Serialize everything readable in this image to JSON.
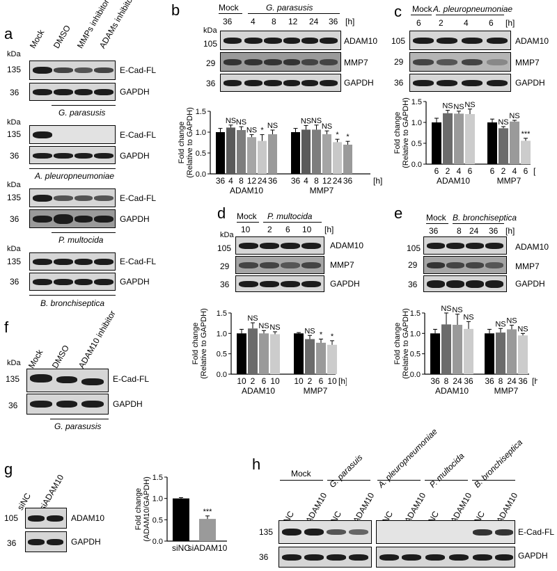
{
  "panels": {
    "a": {
      "letter": "a",
      "lanes": [
        "Mock",
        "DMSO",
        "MMPs inhibitor",
        "ADAMs inhibitor"
      ],
      "kda": "kDa",
      "blocks": [
        {
          "strain": "G. parasusis",
          "rows": [
            {
              "mw": "135",
              "label": "E-Cad-FL"
            },
            {
              "mw": "36",
              "label": "GAPDH"
            }
          ]
        },
        {
          "strain": "A. pleuropneumoniae",
          "rows": [
            {
              "mw": "135",
              "label": "E-Cad-FL"
            },
            {
              "mw": "36",
              "label": "GAPDH"
            }
          ]
        },
        {
          "strain": "P. multocida",
          "rows": [
            {
              "mw": "135",
              "label": "E-Cad-FL"
            },
            {
              "mw": "36",
              "label": "GAPDH"
            }
          ]
        },
        {
          "strain": "B. bronchiseptica",
          "rows": [
            {
              "mw": "135",
              "label": "E-Cad-FL"
            },
            {
              "mw": "36",
              "label": "GAPDH"
            }
          ]
        }
      ]
    },
    "b": {
      "letter": "b",
      "mock": "Mock",
      "strain": "G. parasusis",
      "unit": "[h]",
      "lanes": [
        "36",
        "4",
        "8",
        "12",
        "24",
        "36"
      ],
      "rows": [
        {
          "mw": "105",
          "label": "ADAM10"
        },
        {
          "mw": "29",
          "label": "MMP7"
        },
        {
          "mw": "36",
          "label": "GAPDH"
        }
      ]
    },
    "c": {
      "letter": "c",
      "mock": "Mock",
      "strain": "A. pleuropneumoniae",
      "unit": "[h]",
      "lanes": [
        "6",
        "2",
        "4",
        "6"
      ],
      "rows": [
        {
          "mw": "105",
          "label": "ADAM10"
        },
        {
          "mw": "29",
          "label": "MMP7"
        },
        {
          "mw": "36",
          "label": "GAPDH"
        }
      ]
    },
    "d": {
      "letter": "d",
      "mock": "Mock",
      "strain": "P. multocida",
      "unit": "[h]",
      "lanes": [
        "10",
        "2",
        "6",
        "10"
      ],
      "rows": [
        {
          "mw": "105",
          "label": "ADAM10"
        },
        {
          "mw": "29",
          "label": "MMP7"
        },
        {
          "mw": "36",
          "label": "GAPDH"
        }
      ]
    },
    "e": {
      "letter": "e",
      "mock": "Mock",
      "strain": "B. bronchiseptica",
      "unit": "[h]",
      "lanes": [
        "36",
        "8",
        "24",
        "36"
      ],
      "rows": [
        {
          "mw": "105",
          "label": "ADAM10"
        },
        {
          "mw": "29",
          "label": "MMP7"
        },
        {
          "mw": "36",
          "label": "GAPDH"
        }
      ]
    },
    "f": {
      "letter": "f",
      "lanes": [
        "Mock",
        "DMSO",
        "ADAM10 inhibitor"
      ],
      "strain": "G. parasusis",
      "rows": [
        {
          "mw": "135",
          "label": "E-Cad-FL"
        },
        {
          "mw": "36",
          "label": "GAPDH"
        }
      ]
    },
    "g": {
      "letter": "g",
      "lanes": [
        "siNC",
        "siADAM10"
      ],
      "rows": [
        {
          "mw": "105",
          "label": "ADAM10"
        },
        {
          "mw": "36",
          "label": "GAPDH"
        }
      ]
    },
    "h": {
      "letter": "h",
      "groups": [
        "Mock",
        "G. parasuis",
        "A. pleuropneumoniae",
        "P. multocida",
        "B. bronchiseptica"
      ],
      "lanes": [
        "siNC",
        "siADAM10",
        "siNC",
        "siADAM10",
        "siNC",
        "siADAM10",
        "siNC",
        "siADAM10",
        "siNC",
        "siADAM10"
      ],
      "rows": [
        {
          "mw": "135",
          "label": "E-Cad-FL"
        },
        {
          "mw": "36",
          "label": "GAPDH"
        }
      ]
    }
  },
  "chart_data": [
    {
      "panel": "b",
      "type": "bar",
      "ylabel": "Fold change\n(Relative to GAPDH)",
      "ylim": [
        0,
        1.5
      ],
      "yticks": [
        "0.0",
        "0.5",
        "1.0",
        "1.5"
      ],
      "groups": [
        "ADAM10",
        "MMP7"
      ],
      "unit": "[h]",
      "categories": [
        "36",
        "4",
        "8",
        "12",
        "24",
        "36"
      ],
      "values": [
        [
          1.0,
          1.11,
          1.05,
          0.88,
          0.79,
          0.95
        ],
        [
          1.0,
          1.06,
          1.06,
          0.95,
          0.76,
          0.7
        ]
      ],
      "errors": [
        [
          0.09,
          0.06,
          0.08,
          0.06,
          0.15,
          0.1
        ],
        [
          0.09,
          0.1,
          0.11,
          0.08,
          0.07,
          0.08
        ]
      ],
      "annotations": [
        [
          "",
          "NS",
          "NS",
          "NS",
          "*",
          "NS"
        ],
        [
          "",
          "NS",
          "NS",
          "NS",
          "*",
          "*"
        ]
      ],
      "colors": [
        "#000000",
        "#5a5a5a",
        "#7d7d7d",
        "#a5a5a5",
        "#c8c8c8",
        "#9a9a9a"
      ]
    },
    {
      "panel": "c",
      "type": "bar",
      "ylabel": "Fold change\n(Relative to GAPDH)",
      "ylim": [
        0,
        1.5
      ],
      "yticks": [
        "0.0",
        "0.5",
        "1.0",
        "1.5"
      ],
      "groups": [
        "ADAM10",
        "MMP7"
      ],
      "unit": "[h]",
      "categories": [
        "6",
        "2",
        "4",
        "6"
      ],
      "values": [
        [
          1.0,
          1.22,
          1.21,
          1.2
        ],
        [
          1.0,
          0.86,
          1.02,
          0.56
        ]
      ],
      "errors": [
        [
          0.1,
          0.07,
          0.06,
          0.12
        ],
        [
          0.08,
          0.04,
          0.03,
          0.06
        ]
      ],
      "annotations": [
        [
          "",
          "NS",
          "NS",
          "NS"
        ],
        [
          "",
          "NS",
          "NS",
          "***"
        ]
      ],
      "colors": [
        "#000000",
        "#6b6b6b",
        "#9a9a9a",
        "#cccccc"
      ]
    },
    {
      "panel": "d",
      "type": "bar",
      "ylabel": "Fold change\n(Relative to GAPDH)",
      "ylim": [
        0,
        1.5
      ],
      "yticks": [
        "0.0",
        "0.5",
        "1.0",
        "1.5"
      ],
      "groups": [
        "ADAM10",
        "MMP7"
      ],
      "unit": "[h]",
      "categories": [
        "10",
        "2",
        "6",
        "10"
      ],
      "values": [
        [
          1.0,
          1.12,
          1.0,
          0.98
        ],
        [
          1.0,
          0.86,
          0.77,
          0.72
        ]
      ],
      "errors": [
        [
          0.1,
          0.14,
          0.07,
          0.06
        ],
        [
          0.02,
          0.09,
          0.09,
          0.1
        ]
      ],
      "annotations": [
        [
          "",
          "NS",
          "NS",
          "NS"
        ],
        [
          "",
          "NS",
          "*",
          "*"
        ]
      ],
      "colors": [
        "#000000",
        "#6b6b6b",
        "#9a9a9a",
        "#cccccc"
      ]
    },
    {
      "panel": "e",
      "type": "bar",
      "ylabel": "Fold change\n(Relative to GAPDH)",
      "ylim": [
        0,
        1.5
      ],
      "yticks": [
        "0.0",
        "0.5",
        "1.0",
        "1.5"
      ],
      "groups": [
        "ADAM10",
        "MMP7"
      ],
      "unit": "[h]",
      "categories": [
        "36",
        "8",
        "24",
        "36"
      ],
      "values": [
        [
          1.0,
          1.22,
          1.21,
          1.11
        ],
        [
          1.0,
          1.02,
          1.1,
          0.95
        ]
      ],
      "errors": [
        [
          0.1,
          0.28,
          0.26,
          0.18
        ],
        [
          0.1,
          0.1,
          0.1,
          0.05
        ]
      ],
      "annotations": [
        [
          "",
          "NS",
          "NS",
          "NS"
        ],
        [
          "",
          "NS",
          "NS",
          "NS"
        ]
      ],
      "colors": [
        "#000000",
        "#6b6b6b",
        "#9a9a9a",
        "#cccccc"
      ]
    },
    {
      "panel": "g",
      "type": "bar",
      "ylabel": "Fold change\n(ADAM10/GAPDH)",
      "ylim": [
        0,
        1.5
      ],
      "yticks": [
        "0.0",
        "0.5",
        "1.0",
        "1.5"
      ],
      "categories": [
        "siNC",
        "siADAM10"
      ],
      "values": [
        1.0,
        0.52
      ],
      "errors": [
        0.02,
        0.07
      ],
      "annotations": [
        "",
        "***"
      ],
      "colors": [
        "#000000",
        "#9a9a9a"
      ]
    }
  ]
}
